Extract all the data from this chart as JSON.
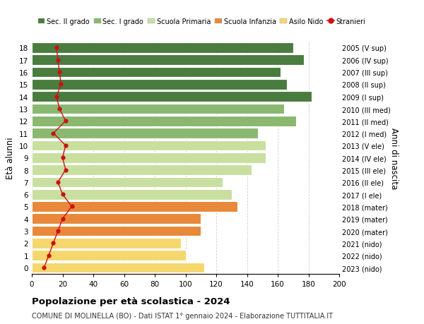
{
  "ages": [
    0,
    1,
    2,
    3,
    4,
    5,
    6,
    7,
    8,
    9,
    10,
    11,
    12,
    13,
    14,
    15,
    16,
    17,
    18
  ],
  "right_labels": [
    "2023 (nido)",
    "2022 (nido)",
    "2021 (nido)",
    "2020 (mater)",
    "2019 (mater)",
    "2018 (mater)",
    "2017 (I ele)",
    "2016 (II ele)",
    "2015 (III ele)",
    "2014 (IV ele)",
    "2013 (V ele)",
    "2012 (I med)",
    "2011 (II med)",
    "2010 (III med)",
    "2009 (I sup)",
    "2008 (II sup)",
    "2007 (III sup)",
    "2006 (IV sup)",
    "2005 (V sup)"
  ],
  "bar_values": [
    112,
    100,
    97,
    110,
    110,
    134,
    130,
    124,
    143,
    152,
    152,
    147,
    172,
    164,
    182,
    166,
    162,
    177,
    170
  ],
  "bar_colors": [
    "#f5d76e",
    "#f5d76e",
    "#f5d76e",
    "#e8883a",
    "#e8883a",
    "#e8883a",
    "#c8dfa0",
    "#c8dfa0",
    "#c8dfa0",
    "#c8dfa0",
    "#c8dfa0",
    "#8ab870",
    "#8ab870",
    "#8ab870",
    "#4a7c3f",
    "#4a7c3f",
    "#4a7c3f",
    "#4a7c3f",
    "#4a7c3f"
  ],
  "stranieri_values": [
    8,
    11,
    14,
    17,
    20,
    26,
    20,
    17,
    22,
    20,
    22,
    14,
    22,
    18,
    16,
    19,
    18,
    17,
    16
  ],
  "legend_labels": [
    "Sec. II grado",
    "Sec. I grado",
    "Scuola Primaria",
    "Scuola Infanzia",
    "Asilo Nido",
    "Stranieri"
  ],
  "legend_colors": [
    "#4a7c3f",
    "#8ab870",
    "#c8dfa0",
    "#e8883a",
    "#f5d76e",
    "#cc1111"
  ],
  "title": "Popolazione per età scolastica - 2024",
  "subtitle": "COMUNE DI MOLINELLA (BO) - Dati ISTAT 1° gennaio 2024 - Elaborazione TUTTITALIA.IT",
  "ylabel": "Età alunni",
  "right_ylabel": "Anni di nascita",
  "xlim": [
    0,
    200
  ],
  "xticks": [
    0,
    20,
    40,
    60,
    80,
    100,
    120,
    140,
    160,
    180,
    200
  ],
  "bg_color": "#ffffff",
  "grid_color": "#d0d0d0"
}
